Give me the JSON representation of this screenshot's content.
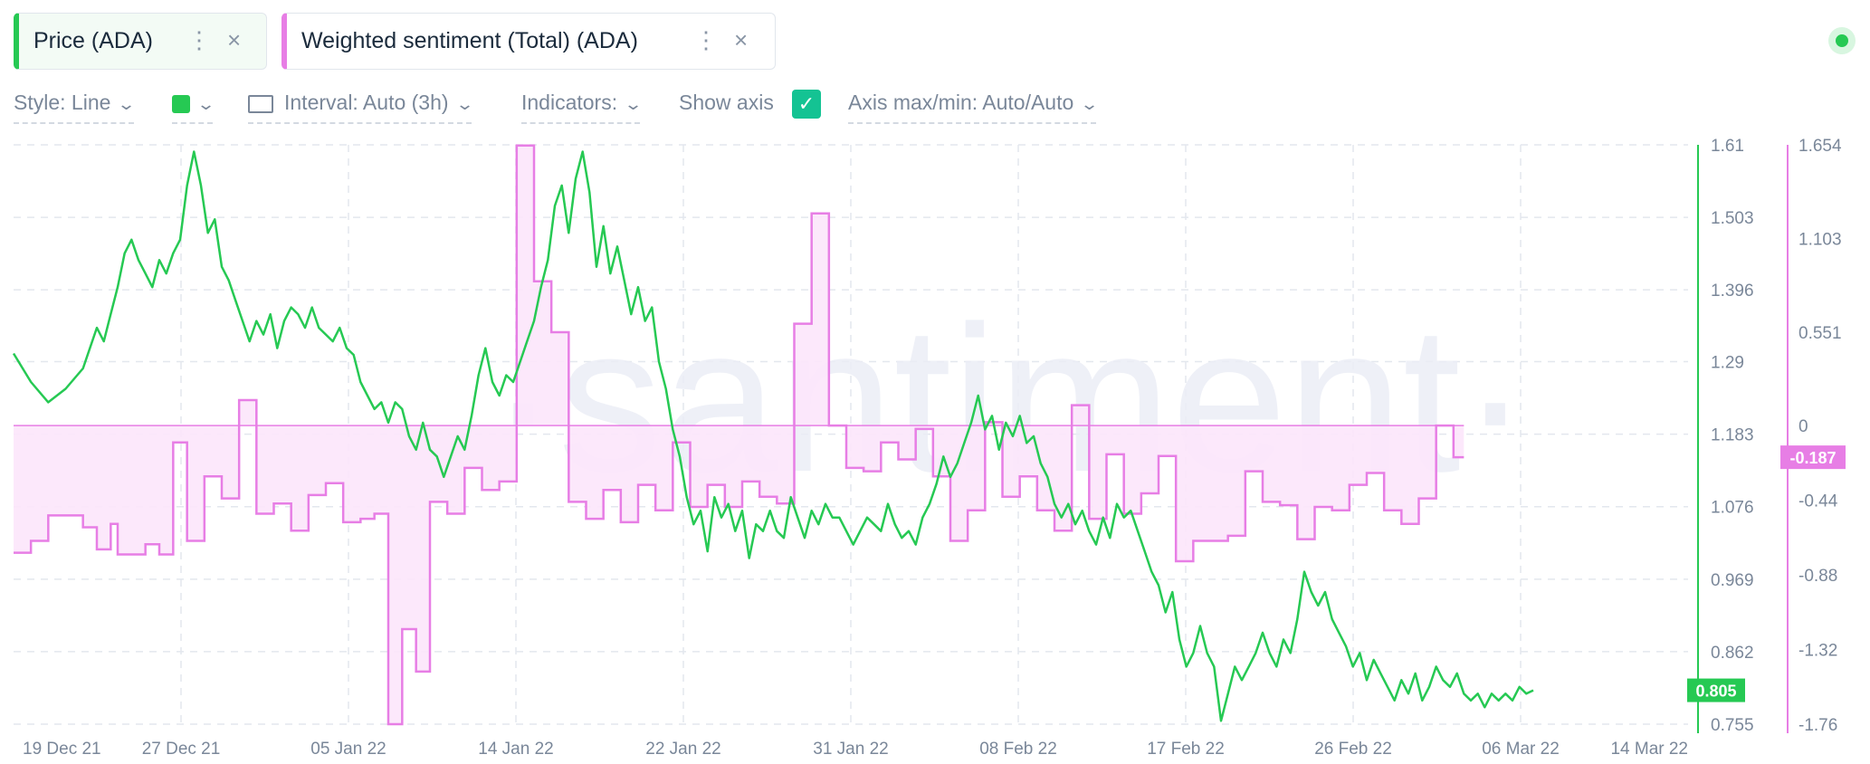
{
  "metrics": [
    {
      "label": "Price (ADA)",
      "color": "#26c953"
    },
    {
      "label": "Weighted sentiment (Total) (ADA)",
      "color": "#e77ee5"
    }
  ],
  "toolbar": {
    "style_label": "Style: Line",
    "interval_label": "Interval: Auto (3h)",
    "indicators_label": "Indicators:",
    "show_axis_label": "Show axis",
    "show_axis_checked": true,
    "axis_maxmin_label": "Axis max/min: Auto/Auto",
    "color_swatch": "#26c953"
  },
  "icons": {
    "more": "⋮",
    "close": "×",
    "check": "✓",
    "chevron": "⌄"
  },
  "watermark": "·santiment·",
  "chart_data": {
    "type": "line",
    "x_tick_labels": [
      "19 Dec 21",
      "27 Dec 21",
      "05 Jan 22",
      "14 Jan 22",
      "22 Jan 22",
      "31 Jan 22",
      "08 Feb 22",
      "17 Feb 22",
      "26 Feb 22",
      "06 Mar 22",
      "14 Mar 22"
    ],
    "price_axis": {
      "ticks": [
        "1.61",
        "1.503",
        "1.396",
        "1.29",
        "1.183",
        "1.076",
        "0.969",
        "0.862",
        "0.755"
      ],
      "ylim": [
        0.755,
        1.61
      ],
      "color": "#26c953"
    },
    "sentiment_axis": {
      "ticks": [
        "1.654",
        "1.103",
        "0.551",
        "0",
        "-0.44",
        "-0.88",
        "-1.32",
        "-1.76"
      ],
      "ylim": [
        -1.76,
        1.654
      ],
      "color": "#e77ee5"
    },
    "last_price_label": "0.805",
    "last_sentiment_label": "-0.187",
    "series": [
      {
        "name": "Price (ADA)",
        "color": "#26c953",
        "points": [
          [
            0,
            1.302
          ],
          [
            5,
            1.26
          ],
          [
            10,
            1.23
          ],
          [
            15,
            1.25
          ],
          [
            20,
            1.28
          ],
          [
            24,
            1.34
          ],
          [
            26,
            1.32
          ],
          [
            28,
            1.36
          ],
          [
            30,
            1.4
          ],
          [
            32,
            1.45
          ],
          [
            34,
            1.47
          ],
          [
            36,
            1.44
          ],
          [
            38,
            1.42
          ],
          [
            40,
            1.4
          ],
          [
            42,
            1.44
          ],
          [
            44,
            1.42
          ],
          [
            46,
            1.45
          ],
          [
            48,
            1.47
          ],
          [
            50,
            1.55
          ],
          [
            52,
            1.6
          ],
          [
            54,
            1.55
          ],
          [
            56,
            1.48
          ],
          [
            58,
            1.5
          ],
          [
            60,
            1.43
          ],
          [
            62,
            1.41
          ],
          [
            64,
            1.38
          ],
          [
            66,
            1.35
          ],
          [
            68,
            1.32
          ],
          [
            70,
            1.35
          ],
          [
            72,
            1.33
          ],
          [
            74,
            1.36
          ],
          [
            76,
            1.31
          ],
          [
            78,
            1.35
          ],
          [
            80,
            1.37
          ],
          [
            82,
            1.36
          ],
          [
            84,
            1.34
          ],
          [
            86,
            1.37
          ],
          [
            88,
            1.34
          ],
          [
            90,
            1.33
          ],
          [
            92,
            1.32
          ],
          [
            94,
            1.34
          ],
          [
            96,
            1.31
          ],
          [
            98,
            1.3
          ],
          [
            100,
            1.26
          ],
          [
            102,
            1.24
          ],
          [
            104,
            1.22
          ],
          [
            106,
            1.23
          ],
          [
            108,
            1.2
          ],
          [
            110,
            1.23
          ],
          [
            112,
            1.22
          ],
          [
            114,
            1.18
          ],
          [
            116,
            1.16
          ],
          [
            118,
            1.2
          ],
          [
            120,
            1.16
          ],
          [
            122,
            1.15
          ],
          [
            124,
            1.12
          ],
          [
            126,
            1.15
          ],
          [
            128,
            1.18
          ],
          [
            130,
            1.16
          ],
          [
            132,
            1.21
          ],
          [
            134,
            1.27
          ],
          [
            136,
            1.31
          ],
          [
            138,
            1.26
          ],
          [
            140,
            1.24
          ],
          [
            142,
            1.27
          ],
          [
            144,
            1.26
          ],
          [
            146,
            1.29
          ],
          [
            148,
            1.32
          ],
          [
            150,
            1.35
          ],
          [
            152,
            1.4
          ],
          [
            154,
            1.44
          ],
          [
            156,
            1.52
          ],
          [
            158,
            1.55
          ],
          [
            160,
            1.48
          ],
          [
            162,
            1.56
          ],
          [
            164,
            1.6
          ],
          [
            166,
            1.54
          ],
          [
            168,
            1.43
          ],
          [
            170,
            1.49
          ],
          [
            172,
            1.42
          ],
          [
            174,
            1.46
          ],
          [
            176,
            1.41
          ],
          [
            178,
            1.36
          ],
          [
            180,
            1.4
          ],
          [
            182,
            1.35
          ],
          [
            184,
            1.37
          ],
          [
            186,
            1.29
          ],
          [
            188,
            1.25
          ],
          [
            190,
            1.19
          ],
          [
            192,
            1.15
          ],
          [
            194,
            1.09
          ],
          [
            196,
            1.05
          ],
          [
            198,
            1.07
          ],
          [
            200,
            1.01
          ],
          [
            202,
            1.09
          ],
          [
            204,
            1.06
          ],
          [
            206,
            1.08
          ],
          [
            208,
            1.04
          ],
          [
            210,
            1.07
          ],
          [
            212,
            1.0
          ],
          [
            214,
            1.05
          ],
          [
            216,
            1.04
          ],
          [
            218,
            1.07
          ],
          [
            220,
            1.04
          ],
          [
            222,
            1.03
          ],
          [
            224,
            1.09
          ],
          [
            226,
            1.06
          ],
          [
            228,
            1.03
          ],
          [
            230,
            1.07
          ],
          [
            232,
            1.05
          ],
          [
            234,
            1.08
          ],
          [
            236,
            1.06
          ],
          [
            238,
            1.06
          ],
          [
            240,
            1.04
          ],
          [
            242,
            1.02
          ],
          [
            244,
            1.04
          ],
          [
            246,
            1.06
          ],
          [
            248,
            1.05
          ],
          [
            250,
            1.04
          ],
          [
            252,
            1.08
          ],
          [
            254,
            1.05
          ],
          [
            256,
            1.03
          ],
          [
            258,
            1.04
          ],
          [
            260,
            1.02
          ],
          [
            262,
            1.06
          ],
          [
            264,
            1.08
          ],
          [
            266,
            1.11
          ],
          [
            268,
            1.15
          ],
          [
            270,
            1.12
          ],
          [
            272,
            1.14
          ],
          [
            274,
            1.17
          ],
          [
            276,
            1.2
          ],
          [
            278,
            1.24
          ],
          [
            280,
            1.19
          ],
          [
            282,
            1.21
          ],
          [
            284,
            1.16
          ],
          [
            286,
            1.2
          ],
          [
            288,
            1.18
          ],
          [
            290,
            1.21
          ],
          [
            292,
            1.17
          ],
          [
            294,
            1.18
          ],
          [
            296,
            1.14
          ],
          [
            298,
            1.12
          ],
          [
            300,
            1.08
          ],
          [
            302,
            1.06
          ],
          [
            304,
            1.08
          ],
          [
            306,
            1.05
          ],
          [
            308,
            1.07
          ],
          [
            310,
            1.04
          ],
          [
            312,
            1.02
          ],
          [
            314,
            1.06
          ],
          [
            316,
            1.03
          ],
          [
            318,
            1.08
          ],
          [
            320,
            1.06
          ],
          [
            322,
            1.07
          ],
          [
            324,
            1.04
          ],
          [
            326,
            1.01
          ],
          [
            328,
            0.98
          ],
          [
            330,
            0.96
          ],
          [
            332,
            0.92
          ],
          [
            334,
            0.95
          ],
          [
            336,
            0.88
          ],
          [
            338,
            0.84
          ],
          [
            340,
            0.86
          ],
          [
            342,
            0.9
          ],
          [
            344,
            0.86
          ],
          [
            346,
            0.84
          ],
          [
            348,
            0.76
          ],
          [
            350,
            0.8
          ],
          [
            352,
            0.84
          ],
          [
            354,
            0.82
          ],
          [
            356,
            0.84
          ],
          [
            358,
            0.86
          ],
          [
            360,
            0.89
          ],
          [
            362,
            0.86
          ],
          [
            364,
            0.84
          ],
          [
            366,
            0.88
          ],
          [
            368,
            0.86
          ],
          [
            370,
            0.91
          ],
          [
            372,
            0.98
          ],
          [
            374,
            0.95
          ],
          [
            376,
            0.93
          ],
          [
            378,
            0.95
          ],
          [
            380,
            0.91
          ],
          [
            382,
            0.89
          ],
          [
            384,
            0.87
          ],
          [
            386,
            0.84
          ],
          [
            388,
            0.86
          ],
          [
            390,
            0.82
          ],
          [
            392,
            0.85
          ],
          [
            394,
            0.83
          ],
          [
            396,
            0.81
          ],
          [
            398,
            0.79
          ],
          [
            400,
            0.82
          ],
          [
            402,
            0.8
          ],
          [
            404,
            0.83
          ],
          [
            406,
            0.79
          ],
          [
            408,
            0.81
          ],
          [
            410,
            0.84
          ],
          [
            412,
            0.82
          ],
          [
            414,
            0.81
          ],
          [
            416,
            0.83
          ],
          [
            418,
            0.8
          ],
          [
            420,
            0.79
          ],
          [
            422,
            0.8
          ],
          [
            424,
            0.78
          ],
          [
            426,
            0.8
          ],
          [
            428,
            0.79
          ],
          [
            430,
            0.8
          ],
          [
            432,
            0.79
          ],
          [
            434,
            0.81
          ],
          [
            436,
            0.8
          ],
          [
            438,
            0.805
          ]
        ]
      },
      {
        "name": "Weighted sentiment (Total) (ADA)",
        "color": "#e77ee5",
        "points": [
          [
            0,
            -0.75
          ],
          [
            5,
            -0.68
          ],
          [
            10,
            -0.53
          ],
          [
            20,
            -0.6
          ],
          [
            24,
            -0.73
          ],
          [
            28,
            -0.58
          ],
          [
            30,
            -0.76
          ],
          [
            38,
            -0.7
          ],
          [
            42,
            -0.76
          ],
          [
            46,
            -0.1
          ],
          [
            50,
            -0.68
          ],
          [
            55,
            -0.3
          ],
          [
            60,
            -0.43
          ],
          [
            65,
            0.15
          ],
          [
            70,
            -0.52
          ],
          [
            75,
            -0.46
          ],
          [
            80,
            -0.62
          ],
          [
            85,
            -0.41
          ],
          [
            90,
            -0.34
          ],
          [
            95,
            -0.57
          ],
          [
            100,
            -0.55
          ],
          [
            104,
            -0.52
          ],
          [
            108,
            -1.76
          ],
          [
            112,
            -1.2
          ],
          [
            116,
            -1.45
          ],
          [
            120,
            -0.45
          ],
          [
            125,
            -0.52
          ],
          [
            130,
            -0.25
          ],
          [
            135,
            -0.38
          ],
          [
            140,
            -0.33
          ],
          [
            145,
            1.65
          ],
          [
            150,
            0.85
          ],
          [
            155,
            0.55
          ],
          [
            160,
            -0.45
          ],
          [
            165,
            -0.55
          ],
          [
            170,
            -0.38
          ],
          [
            175,
            -0.57
          ],
          [
            180,
            -0.35
          ],
          [
            185,
            -0.5
          ],
          [
            190,
            -0.1
          ],
          [
            195,
            -0.48
          ],
          [
            200,
            -0.35
          ],
          [
            205,
            -0.48
          ],
          [
            210,
            -0.33
          ],
          [
            215,
            -0.42
          ],
          [
            220,
            -0.46
          ],
          [
            225,
            0.6
          ],
          [
            230,
            1.25
          ],
          [
            235,
            0.0
          ],
          [
            240,
            -0.25
          ],
          [
            245,
            -0.27
          ],
          [
            250,
            -0.1
          ],
          [
            255,
            -0.2
          ],
          [
            260,
            -0.02
          ],
          [
            265,
            -0.3
          ],
          [
            270,
            -0.68
          ],
          [
            275,
            -0.5
          ],
          [
            280,
            0.02
          ],
          [
            285,
            -0.42
          ],
          [
            290,
            -0.3
          ],
          [
            295,
            -0.5
          ],
          [
            300,
            -0.62
          ],
          [
            305,
            0.12
          ],
          [
            310,
            -0.55
          ],
          [
            315,
            -0.17
          ],
          [
            320,
            -0.52
          ],
          [
            325,
            -0.4
          ],
          [
            330,
            -0.18
          ],
          [
            335,
            -0.8
          ],
          [
            340,
            -0.68
          ],
          [
            345,
            -0.68
          ],
          [
            350,
            -0.65
          ],
          [
            355,
            -0.27
          ],
          [
            360,
            -0.45
          ],
          [
            365,
            -0.47
          ],
          [
            370,
            -0.67
          ],
          [
            375,
            -0.48
          ],
          [
            380,
            -0.5
          ],
          [
            385,
            -0.35
          ],
          [
            390,
            -0.28
          ],
          [
            395,
            -0.5
          ],
          [
            400,
            -0.58
          ],
          [
            405,
            -0.43
          ],
          [
            410,
            0.0
          ],
          [
            415,
            -0.187
          ],
          [
            418,
            -0.187
          ]
        ]
      }
    ]
  }
}
